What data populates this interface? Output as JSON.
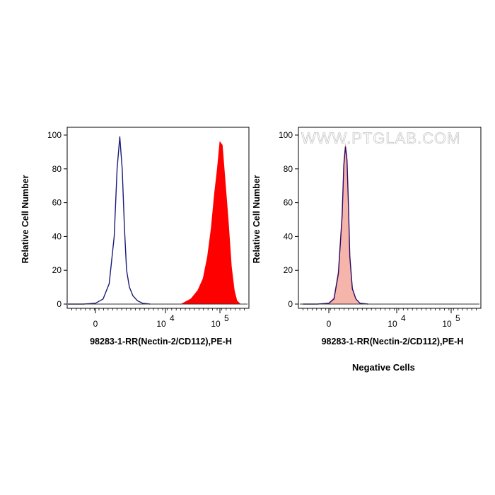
{
  "watermark": "WWW.PTGLAB.COM",
  "caption": "Negative Cells",
  "chart_data": [
    {
      "type": "area",
      "xlabel": "98283-1-RR(Nectin-2/CD112),PE-H",
      "ylabel": "Relative Cell Number",
      "ylim": [
        0,
        100
      ],
      "y_ticks": [
        "0",
        "20",
        "40",
        "60",
        "80",
        "100"
      ],
      "x_scale": "biexponential",
      "x_ticks": [
        {
          "label": "0",
          "value": 0
        },
        {
          "label": "10",
          "sup": "4",
          "value": 10000
        },
        {
          "label": "10",
          "sup": "5",
          "value": 100000
        }
      ],
      "series": [
        {
          "style": "outline",
          "color": "#1a1a7a",
          "x": [
            -3000,
            -1500,
            -500,
            0,
            300,
            600,
            900,
            1100,
            1300,
            1500,
            1700,
            1900,
            2200,
            2600,
            3200,
            4000,
            5500
          ],
          "y": [
            0,
            0,
            0,
            0.5,
            3,
            12,
            40,
            80,
            99,
            80,
            45,
            20,
            10,
            5,
            2,
            0.5,
            0
          ]
        },
        {
          "style": "filled",
          "color": "#ff0000",
          "x": [
            20000,
            30000,
            40000,
            50000,
            60000,
            70000,
            80000,
            90000,
            100000,
            110000,
            120000,
            140000,
            160000,
            180000,
            200000,
            230000
          ],
          "y": [
            0,
            3,
            8,
            15,
            28,
            45,
            65,
            80,
            96,
            94,
            78,
            50,
            22,
            8,
            2,
            0
          ]
        }
      ]
    },
    {
      "type": "area",
      "xlabel": "98283-1-RR(Nectin-2/CD112),PE-H",
      "ylabel": "Relative Cell Number",
      "ylim": [
        0,
        100
      ],
      "y_ticks": [
        "0",
        "20",
        "40",
        "60",
        "80",
        "100"
      ],
      "x_scale": "biexponential",
      "x_ticks": [
        {
          "label": "0",
          "value": 0
        },
        {
          "label": "10",
          "sup": "4",
          "value": 10000
        },
        {
          "label": "10",
          "sup": "5",
          "value": 100000
        }
      ],
      "series": [
        {
          "style": "filled",
          "color": "#f5b5ab",
          "x": [
            -1500,
            -500,
            0,
            200,
            400,
            600,
            700,
            800,
            900,
            1000,
            1100,
            1300,
            1600,
            2000,
            3000
          ],
          "y": [
            0,
            0,
            0.5,
            4,
            20,
            55,
            85,
            95,
            88,
            60,
            30,
            10,
            3,
            0.5,
            0
          ]
        },
        {
          "style": "outline",
          "color": "#2a0a6a",
          "x": [
            -1500,
            -500,
            0,
            200,
            400,
            600,
            700,
            800,
            900,
            1000,
            1100,
            1300,
            1600,
            2000,
            3000
          ],
          "y": [
            0,
            0,
            0.5,
            3,
            18,
            52,
            82,
            93,
            85,
            58,
            28,
            9,
            3,
            0.5,
            0
          ]
        }
      ]
    }
  ]
}
